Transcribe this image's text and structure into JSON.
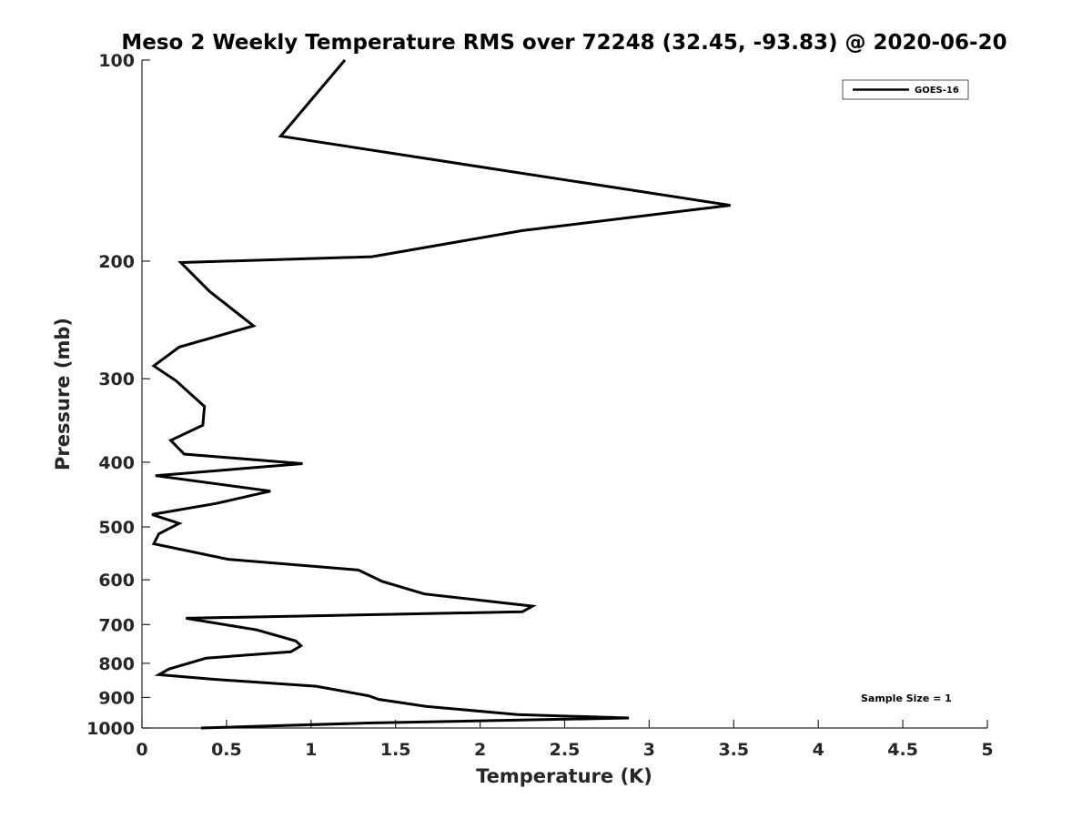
{
  "chart_data": {
    "type": "line",
    "title": "Meso 2 Weekly Temperature RMS over 72248 (32.45, -93.83) @ 2020-06-20",
    "xlabel": "Temperature (K)",
    "ylabel": "Pressure (mb)",
    "xlim": [
      0,
      5
    ],
    "ylim": [
      100,
      1000
    ],
    "yscale": "log",
    "y_reversed": true,
    "x_ticks": [
      "0",
      "0.5",
      "1",
      "1.5",
      "2",
      "2.5",
      "3",
      "3.5",
      "4",
      "4.5",
      "5"
    ],
    "y_ticks": [
      "100",
      "200",
      "300",
      "400",
      "500",
      "600",
      "700",
      "800",
      "900",
      "1000"
    ],
    "grid": false,
    "legend": {
      "placement": "top-right",
      "entries": [
        "GOES-16"
      ]
    },
    "annotation": "Sample Size = 1",
    "series": [
      {
        "name": "GOES-16",
        "color": "#000000",
        "x": [
          1.2,
          0.82,
          3.48,
          2.25,
          1.36,
          0.23,
          0.4,
          0.66,
          0.22,
          0.07,
          0.2,
          0.37,
          0.36,
          0.17,
          0.25,
          0.95,
          0.08,
          0.76,
          0.44,
          0.06,
          0.22,
          0.1,
          0.07,
          0.51,
          1.28,
          1.42,
          1.67,
          2.31,
          2.25,
          0.26,
          0.68,
          0.91,
          0.94,
          0.88,
          0.38,
          0.16,
          0.1,
          0.41,
          1.03,
          1.34,
          1.4,
          1.68,
          2.22,
          2.88,
          1.34,
          0.35
        ],
        "y": [
          100,
          130,
          165,
          180,
          197,
          201,
          222,
          250,
          269,
          287,
          302,
          330,
          352,
          371,
          389,
          402,
          419,
          442,
          461,
          479,
          494,
          512,
          530,
          559,
          580,
          603,
          630,
          657,
          670,
          685,
          713,
          741,
          753,
          769,
          786,
          816,
          832,
          845,
          866,
          895,
          906,
          928,
          955,
          966,
          983,
          1000
        ]
      }
    ]
  }
}
